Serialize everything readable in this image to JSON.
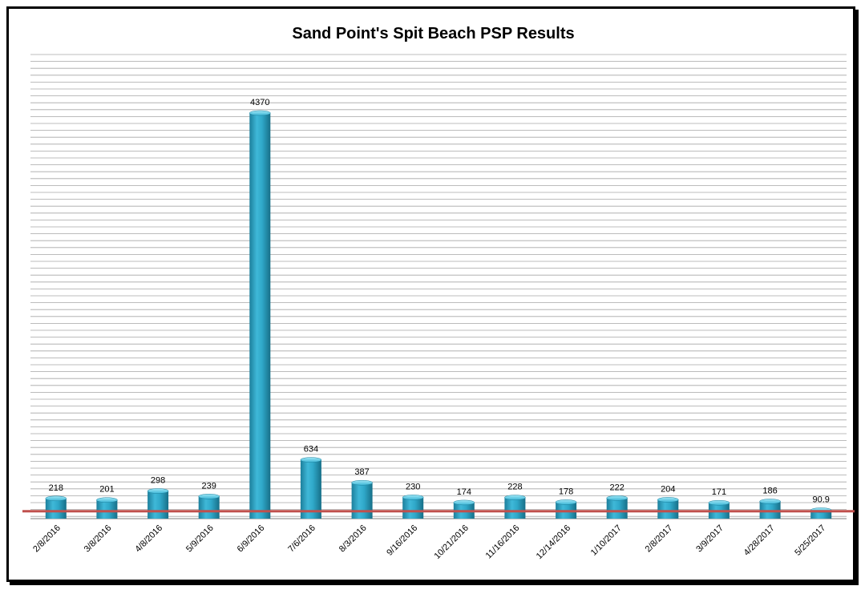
{
  "chart_data": {
    "type": "bar",
    "title": "Sand Point's Spit Beach PSP Results",
    "xlabel": "",
    "ylabel": "",
    "categories": [
      "2/8/2016",
      "3/8/2016",
      "4/8/2016",
      "5/9/2016",
      "6/9/2016",
      "7/6/2016",
      "8/3/2016",
      "9/16/2016",
      "10/21/2016",
      "11/16/2016",
      "12/14/2016",
      "1/10/2017",
      "2/8/2017",
      "3/9/2017",
      "4/28/2017",
      "5/25/2017"
    ],
    "values": [
      218,
      201,
      298,
      239,
      4370,
      634,
      387,
      230,
      174,
      228,
      178,
      222,
      204,
      171,
      186,
      90.9
    ],
    "ylim": [
      0,
      5000
    ],
    "reference_line": 80,
    "grid": true,
    "colors": {
      "bar": "#2fa8c9",
      "bar_dark": "#1c7f9c",
      "bar_light": "#7fd8ee",
      "reference": "#c0504d",
      "grid": "#a6a6a6"
    }
  }
}
